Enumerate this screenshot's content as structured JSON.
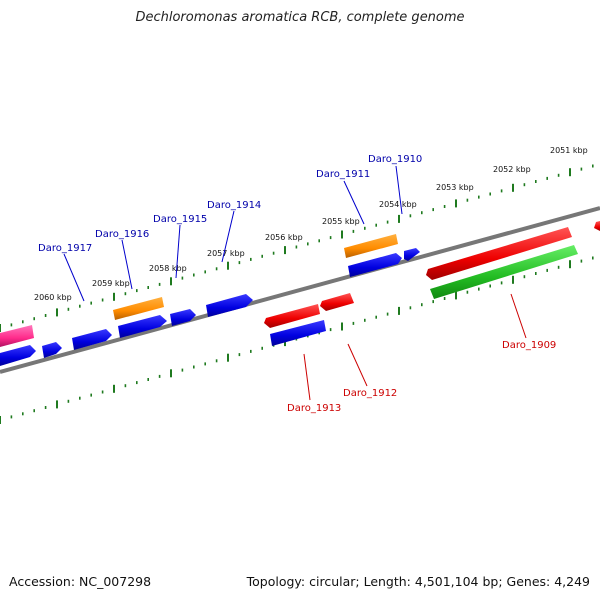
{
  "title": "Dechloromonas aromatica RCB, complete genome",
  "footer": {
    "accession": "Accession: NC_007298",
    "stats": "Topology: circular; Length: 4,501,104 bp; Genes: 4,249"
  },
  "colors": {
    "axis": "#777777",
    "ticks": "#1f7a1f",
    "blue": "#0000e6",
    "red": "#ee0000",
    "orange": "#ff8c00",
    "green": "#22bb22",
    "pink": "#ff2a8a",
    "label_blue": "#0000aa",
    "label_red": "#cc0000"
  },
  "kbp_labels": [
    "2051 kbp",
    "2052 kbp",
    "2053 kbp",
    "2054 kbp",
    "2055 kbp",
    "2056 kbp",
    "2057 kbp",
    "2058 kbp",
    "2059 kbp",
    "2060 kbp"
  ],
  "gene_labels": {
    "top": [
      "Daro_1910",
      "Daro_1911",
      "Daro_1914",
      "Daro_1915",
      "Daro_1916",
      "Daro_1917"
    ],
    "bottom": [
      "Daro_1909",
      "Daro_1912",
      "Daro_1913"
    ]
  }
}
